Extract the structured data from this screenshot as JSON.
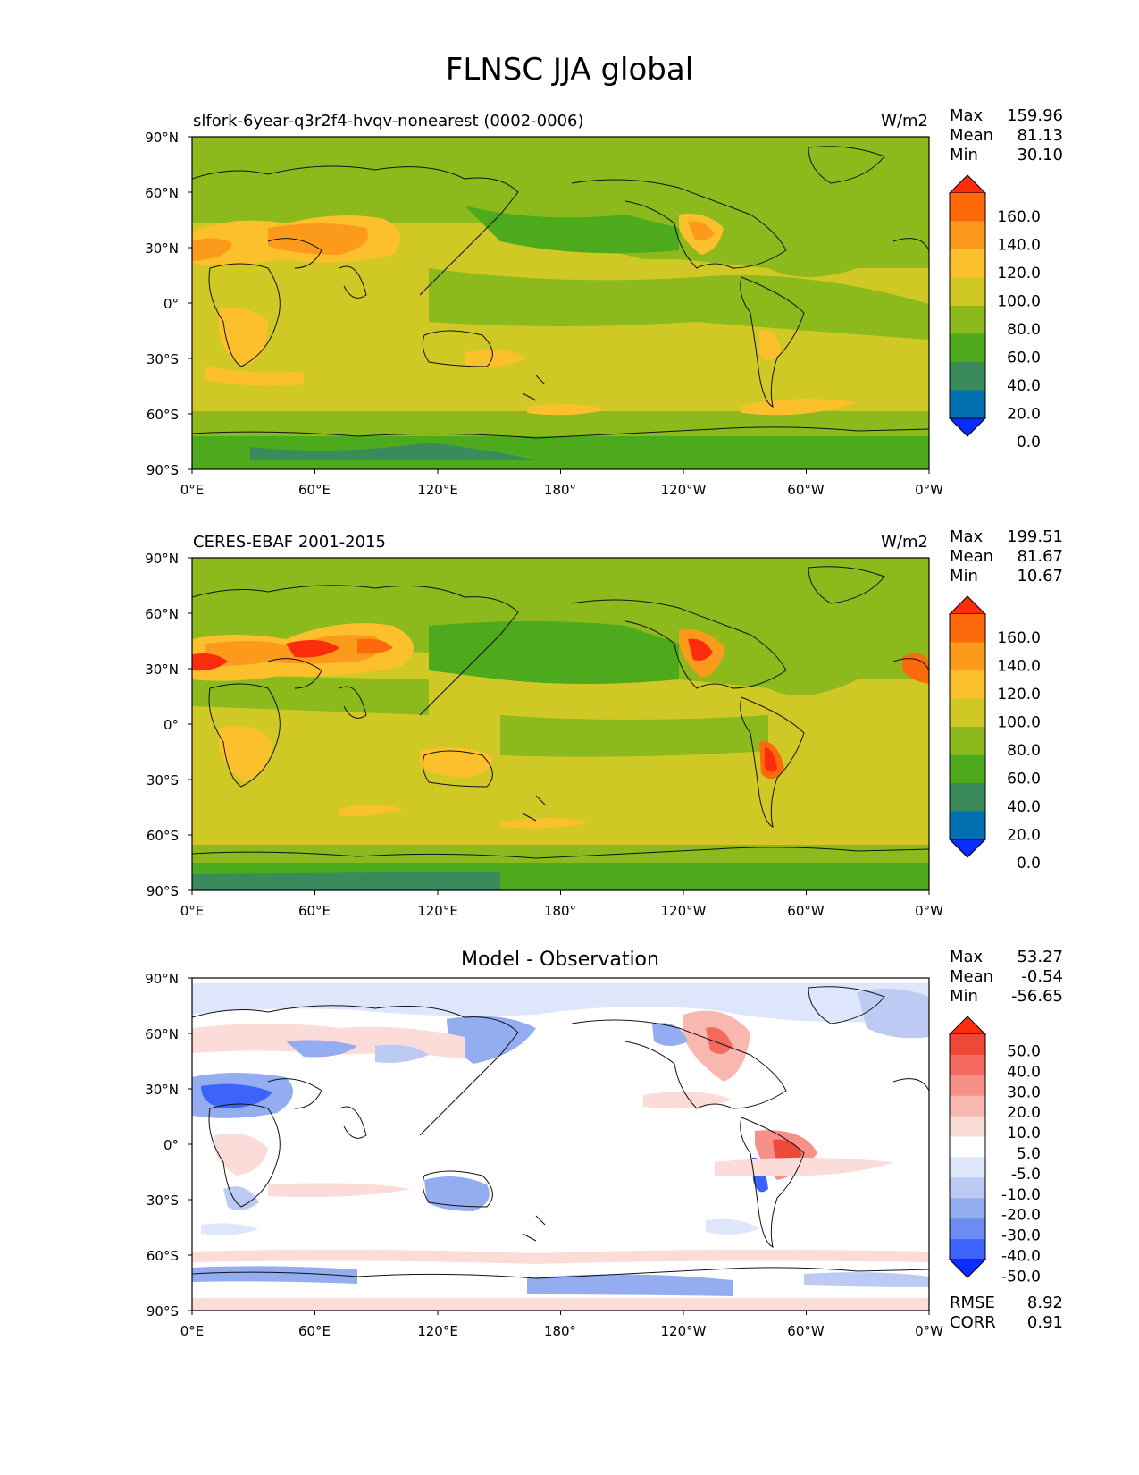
{
  "figure_title": "FLNSC JJA global",
  "colors": {
    "abs_levels": [
      "#0a2cff",
      "#0070b0",
      "#3a8a5c",
      "#4caa1c",
      "#8cba1c",
      "#d0c824",
      "#fcc02c",
      "#fc9a1c",
      "#fc6a0c",
      "#fc2c0c"
    ],
    "diff_levels": [
      "#0a2cff",
      "#3c64fc",
      "#6c8cf4",
      "#94acf0",
      "#bccaf4",
      "#dde6fa",
      "#ffffff",
      "#fcdcd8",
      "#f8b8b0",
      "#f8908a",
      "#f46a5e",
      "#f04838",
      "#fc2c0c"
    ],
    "land_outline": "#111111"
  },
  "chart_data": [
    {
      "type": "heatmap",
      "panel": "model",
      "subtitle_left": "slfork-6year-q3r2f4-hvqv-nonearest (0002-0006)",
      "subtitle_right": "W/m2",
      "stats": {
        "max_label": "Max",
        "max": "159.96",
        "mean_label": "Mean",
        "mean": "81.13",
        "min_label": "Min",
        "min": "30.10"
      },
      "colorbar_ticks": [
        "0.0",
        "20.0",
        "40.0",
        "60.0",
        "80.0",
        "100.0",
        "120.0",
        "140.0",
        "160.0"
      ],
      "xticks": [
        "0°E",
        "60°E",
        "120°E",
        "180°",
        "120°W",
        "60°W",
        "0°W"
      ],
      "yticks": [
        "90°N",
        "60°N",
        "30°N",
        "0°",
        "30°S",
        "60°S",
        "90°S"
      ],
      "xlim": [
        0,
        360
      ],
      "ylim": [
        -90,
        90
      ]
    },
    {
      "type": "heatmap",
      "panel": "observation",
      "subtitle_left": "CERES-EBAF 2001-2015",
      "subtitle_right": "W/m2",
      "stats": {
        "max_label": "Max",
        "max": "199.51",
        "mean_label": "Mean",
        "mean": "81.67",
        "min_label": "Min",
        "min": "10.67"
      },
      "colorbar_ticks": [
        "0.0",
        "20.0",
        "40.0",
        "60.0",
        "80.0",
        "100.0",
        "120.0",
        "140.0",
        "160.0"
      ],
      "xticks": [
        "0°E",
        "60°E",
        "120°E",
        "180°",
        "120°W",
        "60°W",
        "0°W"
      ],
      "yticks": [
        "90°N",
        "60°N",
        "30°N",
        "0°",
        "30°S",
        "60°S",
        "90°S"
      ],
      "xlim": [
        0,
        360
      ],
      "ylim": [
        -90,
        90
      ]
    },
    {
      "type": "heatmap",
      "panel": "difference",
      "center_title": "Model - Observation",
      "stats": {
        "max_label": "Max",
        "max": "53.27",
        "mean_label": "Mean",
        "mean": "-0.54",
        "min_label": "Min",
        "min": "-56.65"
      },
      "colorbar_ticks": [
        "-50.0",
        "-40.0",
        "-30.0",
        "-20.0",
        "-10.0",
        "-5.0",
        "5.0",
        "10.0",
        "20.0",
        "30.0",
        "40.0",
        "50.0"
      ],
      "metrics": {
        "rmse_label": "RMSE",
        "rmse": "8.92",
        "corr_label": "CORR",
        "corr": "0.91"
      },
      "xticks": [
        "0°E",
        "60°E",
        "120°E",
        "180°",
        "120°W",
        "60°W",
        "0°W"
      ],
      "yticks": [
        "90°N",
        "60°N",
        "30°N",
        "0°",
        "30°S",
        "60°S",
        "90°S"
      ],
      "xlim": [
        0,
        360
      ],
      "ylim": [
        -90,
        90
      ]
    }
  ]
}
